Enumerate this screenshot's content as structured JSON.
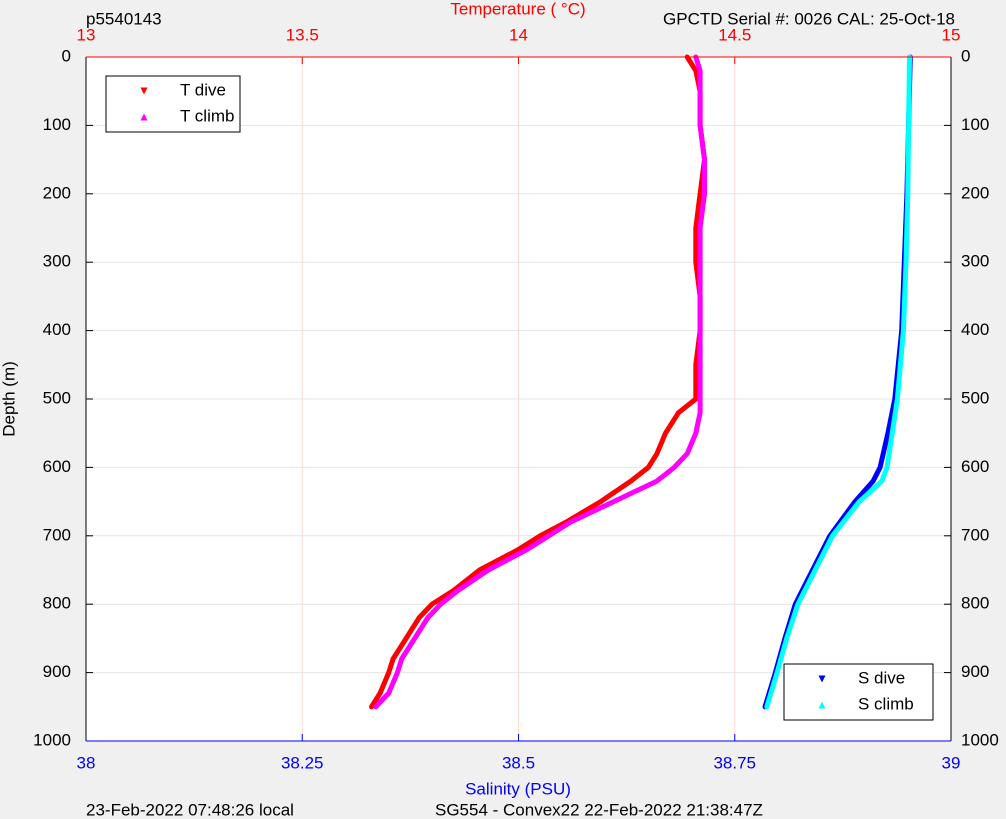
{
  "chart_data": {
    "type": "line",
    "id": "p5540143",
    "header_right": "GPCTD Serial #: 0026 CAL: 25-Oct-18",
    "x2_label": "Temperature (    °C)",
    "x_label": "Salinity (PSU)",
    "y_label": "Depth (m)",
    "footer_left": "23-Feb-2022 07:48:26 local",
    "footer_right": "SG554 - Convex22 22-Feb-2022 21:38:47Z",
    "ylim": [
      0,
      1000
    ],
    "y_inverted": true,
    "yticks": [
      0,
      100,
      200,
      300,
      400,
      500,
      600,
      700,
      800,
      900,
      1000
    ],
    "xlim": [
      38,
      39
    ],
    "xticks": [
      38,
      38.25,
      38.5,
      38.75,
      39
    ],
    "x_color": "#0000ff",
    "x2lim": [
      13,
      15
    ],
    "x2ticks": [
      13,
      13.5,
      14,
      14.5,
      15
    ],
    "x2_color": "#ff0000",
    "grid": true,
    "series": [
      {
        "name": "T dive",
        "color": "#ff0000",
        "axis": "x2",
        "marker": "down",
        "legend": "upper left",
        "depths": [
          0,
          20,
          50,
          100,
          150,
          200,
          250,
          300,
          350,
          400,
          450,
          500,
          520,
          550,
          580,
          600,
          620,
          650,
          680,
          700,
          720,
          750,
          780,
          800,
          820,
          850,
          880,
          900,
          930,
          950
        ],
        "values": [
          14.39,
          14.41,
          14.42,
          14.42,
          14.43,
          14.42,
          14.41,
          14.41,
          14.42,
          14.42,
          14.41,
          14.41,
          14.37,
          14.34,
          14.32,
          14.3,
          14.26,
          14.19,
          14.11,
          14.05,
          14.0,
          13.91,
          13.85,
          13.8,
          13.77,
          13.74,
          13.71,
          13.7,
          13.68,
          13.66
        ]
      },
      {
        "name": "T climb",
        "color": "#ff00ff",
        "axis": "x2",
        "marker": "up",
        "legend": "upper left",
        "depths": [
          0,
          20,
          50,
          100,
          150,
          200,
          250,
          300,
          350,
          400,
          450,
          500,
          520,
          550,
          580,
          600,
          620,
          650,
          680,
          700,
          720,
          750,
          780,
          800,
          820,
          850,
          880,
          900,
          930,
          950
        ],
        "values": [
          14.41,
          14.42,
          14.42,
          14.42,
          14.43,
          14.43,
          14.42,
          14.42,
          14.42,
          14.42,
          14.42,
          14.42,
          14.42,
          14.41,
          14.39,
          14.36,
          14.32,
          14.22,
          14.12,
          14.07,
          14.02,
          13.93,
          13.86,
          13.82,
          13.79,
          13.76,
          13.73,
          13.72,
          13.7,
          13.67
        ]
      },
      {
        "name": "S dive",
        "color": "#0000ff",
        "axis": "x",
        "marker": "down",
        "legend": "lower right",
        "depths": [
          0,
          100,
          200,
          300,
          400,
          500,
          550,
          600,
          620,
          650,
          700,
          750,
          800,
          850,
          900,
          950
        ],
        "values": [
          38.953,
          38.951,
          38.949,
          38.946,
          38.943,
          38.935,
          38.927,
          38.918,
          38.91,
          38.889,
          38.86,
          38.84,
          38.82,
          38.808,
          38.797,
          38.785
        ]
      },
      {
        "name": "S climb",
        "color": "#00ffff",
        "axis": "x",
        "marker": "up",
        "legend": "lower right",
        "depths": [
          0,
          100,
          200,
          300,
          400,
          500,
          550,
          600,
          620,
          650,
          700,
          750,
          800,
          850,
          900,
          950
        ],
        "values": [
          38.952,
          38.951,
          38.95,
          38.948,
          38.945,
          38.938,
          38.932,
          38.926,
          38.92,
          38.894,
          38.863,
          38.843,
          38.823,
          38.81,
          38.799,
          38.787
        ]
      }
    ]
  }
}
